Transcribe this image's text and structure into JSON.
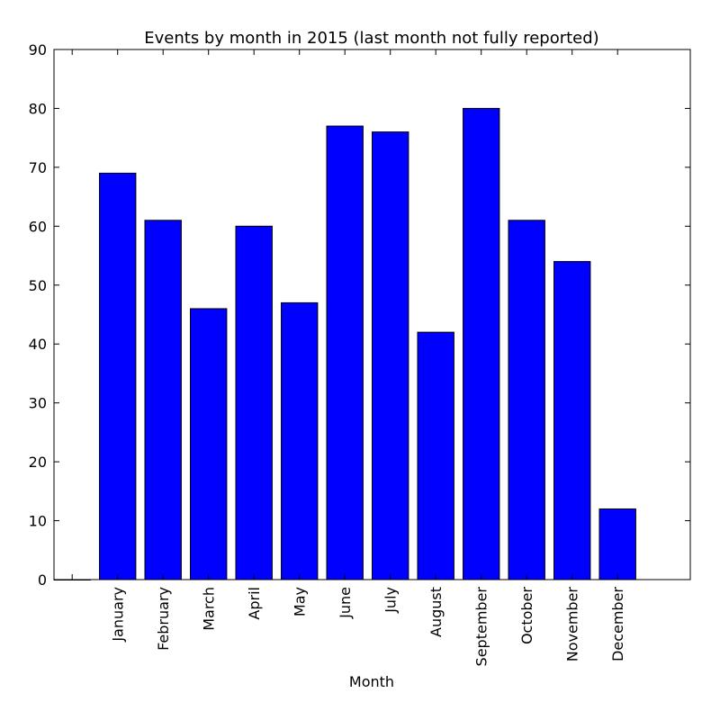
{
  "chart_data": {
    "type": "bar",
    "title": "Events by month in 2015 (last month not fully reported)",
    "xlabel": "Month",
    "ylabel": "",
    "categories": [
      "",
      "January",
      "February",
      "March",
      "April",
      "May",
      "June",
      "July",
      "August",
      "September",
      "October",
      "November",
      "December"
    ],
    "values": [
      0,
      69,
      61,
      46,
      60,
      47,
      77,
      76,
      42,
      80,
      61,
      54,
      12
    ],
    "ylim": [
      0,
      90
    ],
    "yticks": [
      "0",
      "10",
      "20",
      "30",
      "40",
      "50",
      "60",
      "70",
      "80",
      "90"
    ],
    "grid": false,
    "bar_color": "#0000ff",
    "edge_color": "#000000"
  }
}
